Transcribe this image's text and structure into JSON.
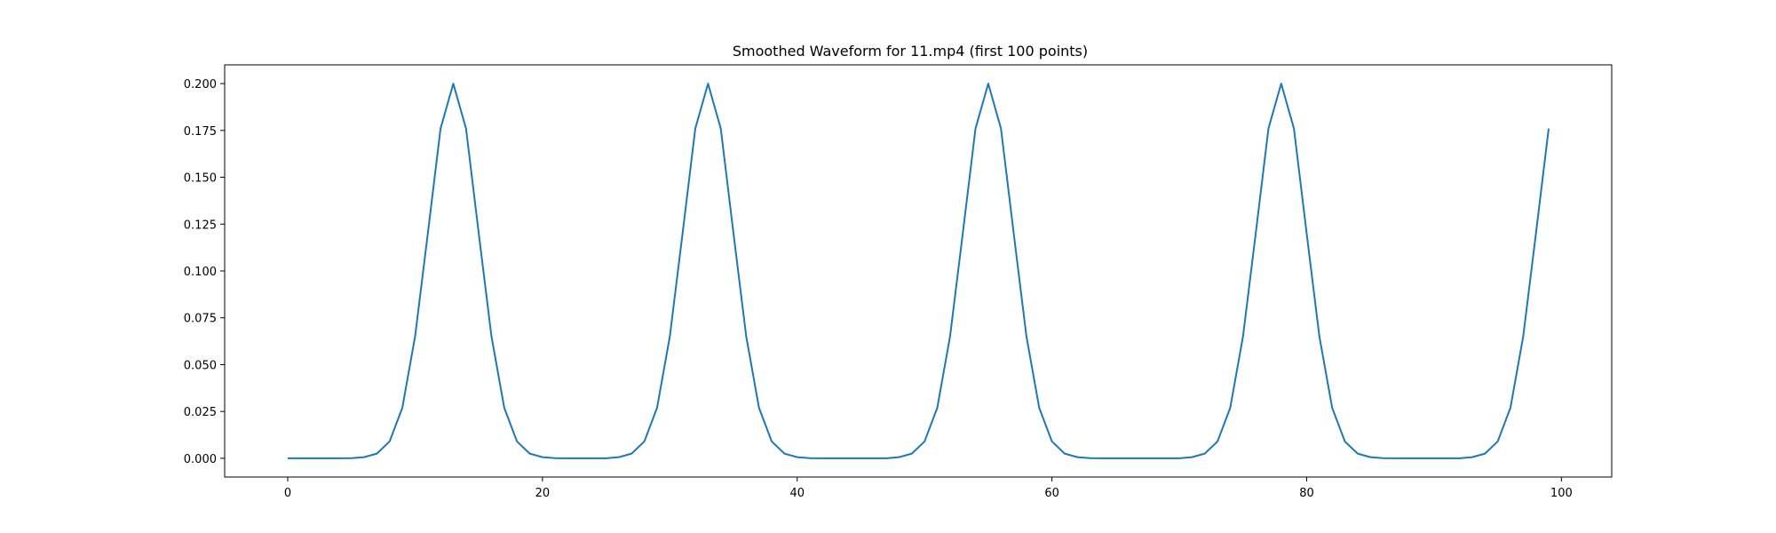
{
  "figure": {
    "title": "Smoothed Waveform for 11.mp4 (first 100 points)"
  },
  "chart_data": {
    "type": "line",
    "title": "Smoothed Waveform for 11.mp4 (first 100 points)",
    "xlabel": "",
    "ylabel": "",
    "xlim": [
      -4.95,
      103.95
    ],
    "ylim": [
      -0.01,
      0.21
    ],
    "xticks": [
      0,
      20,
      40,
      60,
      80,
      100
    ],
    "xtick_labels": [
      "0",
      "20",
      "40",
      "60",
      "80",
      "100"
    ],
    "yticks": [
      0.0,
      0.025,
      0.05,
      0.075,
      0.1,
      0.125,
      0.15,
      0.175,
      0.2
    ],
    "ytick_labels": [
      "0.000",
      "0.025",
      "0.050",
      "0.075",
      "0.100",
      "0.125",
      "0.150",
      "0.175",
      "0.200"
    ],
    "grid": false,
    "legend": "none",
    "series": [
      {
        "color": "#1f77b4",
        "x": [
          0,
          1,
          2,
          3,
          4,
          5,
          6,
          7,
          8,
          9,
          10,
          11,
          12,
          13,
          14,
          15,
          16,
          17,
          18,
          19,
          20,
          21,
          22,
          23,
          24,
          25,
          26,
          27,
          28,
          29,
          30,
          31,
          32,
          33,
          34,
          35,
          36,
          37,
          38,
          39,
          40,
          41,
          42,
          43,
          44,
          45,
          46,
          47,
          48,
          49,
          50,
          51,
          52,
          53,
          54,
          55,
          56,
          57,
          58,
          59,
          60,
          61,
          62,
          63,
          64,
          65,
          66,
          67,
          68,
          69,
          70,
          71,
          72,
          73,
          74,
          75,
          76,
          77,
          78,
          79,
          80,
          81,
          82,
          83,
          84,
          85,
          86,
          87,
          88,
          89,
          90,
          91,
          92,
          93,
          94,
          95,
          96,
          97,
          98,
          99
        ],
        "y": [
          0,
          0,
          0,
          0,
          0,
          0.0001,
          0.0006,
          0.0025,
          0.009,
          0.027,
          0.065,
          0.12,
          0.176,
          0.2,
          0.176,
          0.12,
          0.065,
          0.027,
          0.009,
          0.0025,
          0.0006,
          0.0001,
          0,
          0,
          0,
          0,
          0.0006,
          0.0025,
          0.009,
          0.027,
          0.065,
          0.12,
          0.176,
          0.2,
          0.176,
          0.12,
          0.065,
          0.027,
          0.009,
          0.0025,
          0.0006,
          0.0001,
          0,
          0,
          0,
          0,
          0,
          0,
          0.0006,
          0.0025,
          0.009,
          0.027,
          0.065,
          0.12,
          0.176,
          0.2,
          0.176,
          0.12,
          0.065,
          0.027,
          0.009,
          0.0025,
          0.0006,
          0.0001,
          0,
          0,
          0,
          0,
          0,
          0,
          0,
          0.0006,
          0.0025,
          0.009,
          0.027,
          0.065,
          0.12,
          0.176,
          0.2,
          0.176,
          0.12,
          0.065,
          0.027,
          0.009,
          0.0025,
          0.0006,
          0.0001,
          0,
          0,
          0,
          0,
          0,
          0,
          0.0006,
          0.0025,
          0.009,
          0.027,
          0.065,
          0.12,
          0.176
        ]
      }
    ]
  }
}
